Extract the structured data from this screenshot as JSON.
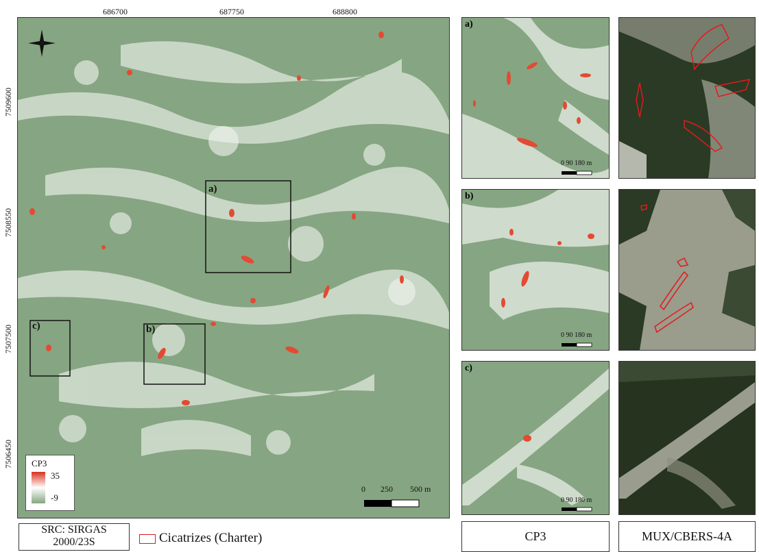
{
  "map": {
    "x_ticks": [
      "686700",
      "687750",
      "688800"
    ],
    "y_ticks": [
      "7509600",
      "7508550",
      "7507500",
      "7506450"
    ],
    "insets": [
      {
        "label": "a)"
      },
      {
        "label": "b)"
      },
      {
        "label": "c)"
      }
    ],
    "scale": {
      "t0": "0",
      "t1": "250",
      "t2": "500 m"
    },
    "north_arrow": "north-arrow-icon"
  },
  "legend": {
    "title": "CP3",
    "max": "35",
    "min": "-9",
    "ramp_colors": [
      "#d7301f",
      "#ffffff",
      "#86a582"
    ]
  },
  "bottom": {
    "src": "SRC: SIRGAS 2000/23S",
    "scar_legend": "Cicatrizes (Charter)",
    "scar_color": "#d7191c"
  },
  "panels": {
    "a_label": "a)",
    "b_label": "b)",
    "c_label": "c)",
    "scale_text": "0   90 180 m",
    "col1_caption": "CP3",
    "col2_caption": "MUX/CBERS-4A"
  }
}
